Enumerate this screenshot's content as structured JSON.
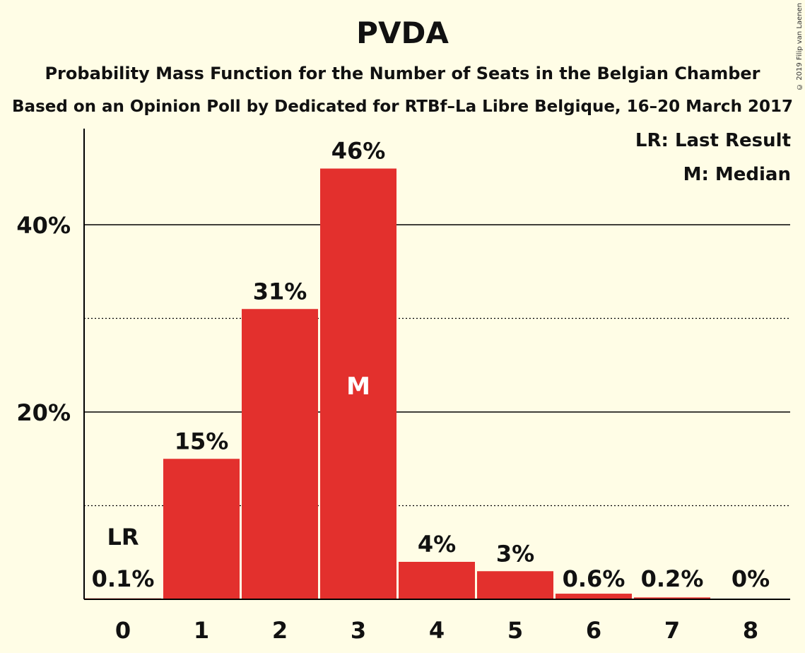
{
  "title": "PVDA",
  "subtitle": "Probability Mass Function for the Number of Seats in the Belgian Chamber",
  "subtitle2": "Based on an Opinion Poll by Dedicated for RTBf–La Libre Belgique, 16–20 March 2017",
  "copyright": "© 2019 Filip van Laenen",
  "legend": {
    "lr": "LR: Last Result",
    "m": "M: Median"
  },
  "colors": {
    "bar": "#e3302d",
    "background": "#fffde6",
    "text": "#111111"
  },
  "chart_data": {
    "type": "bar",
    "categories": [
      "0",
      "1",
      "2",
      "3",
      "4",
      "5",
      "6",
      "7",
      "8"
    ],
    "values": [
      0.1,
      15,
      31,
      46,
      4,
      3,
      0.6,
      0.2,
      0
    ],
    "data_labels": [
      "0.1%",
      "15%",
      "31%",
      "46%",
      "4%",
      "3%",
      "0.6%",
      "0.2%",
      "0%"
    ],
    "y_tick_labels": [
      "20%",
      "40%"
    ],
    "y_ticks": [
      20,
      40
    ],
    "minor_gridlines": [
      10,
      30
    ],
    "ylim": [
      0,
      50
    ],
    "last_result_index": 0,
    "last_result_label": "LR",
    "median_index": 3,
    "median_label": "M",
    "grid": true
  }
}
